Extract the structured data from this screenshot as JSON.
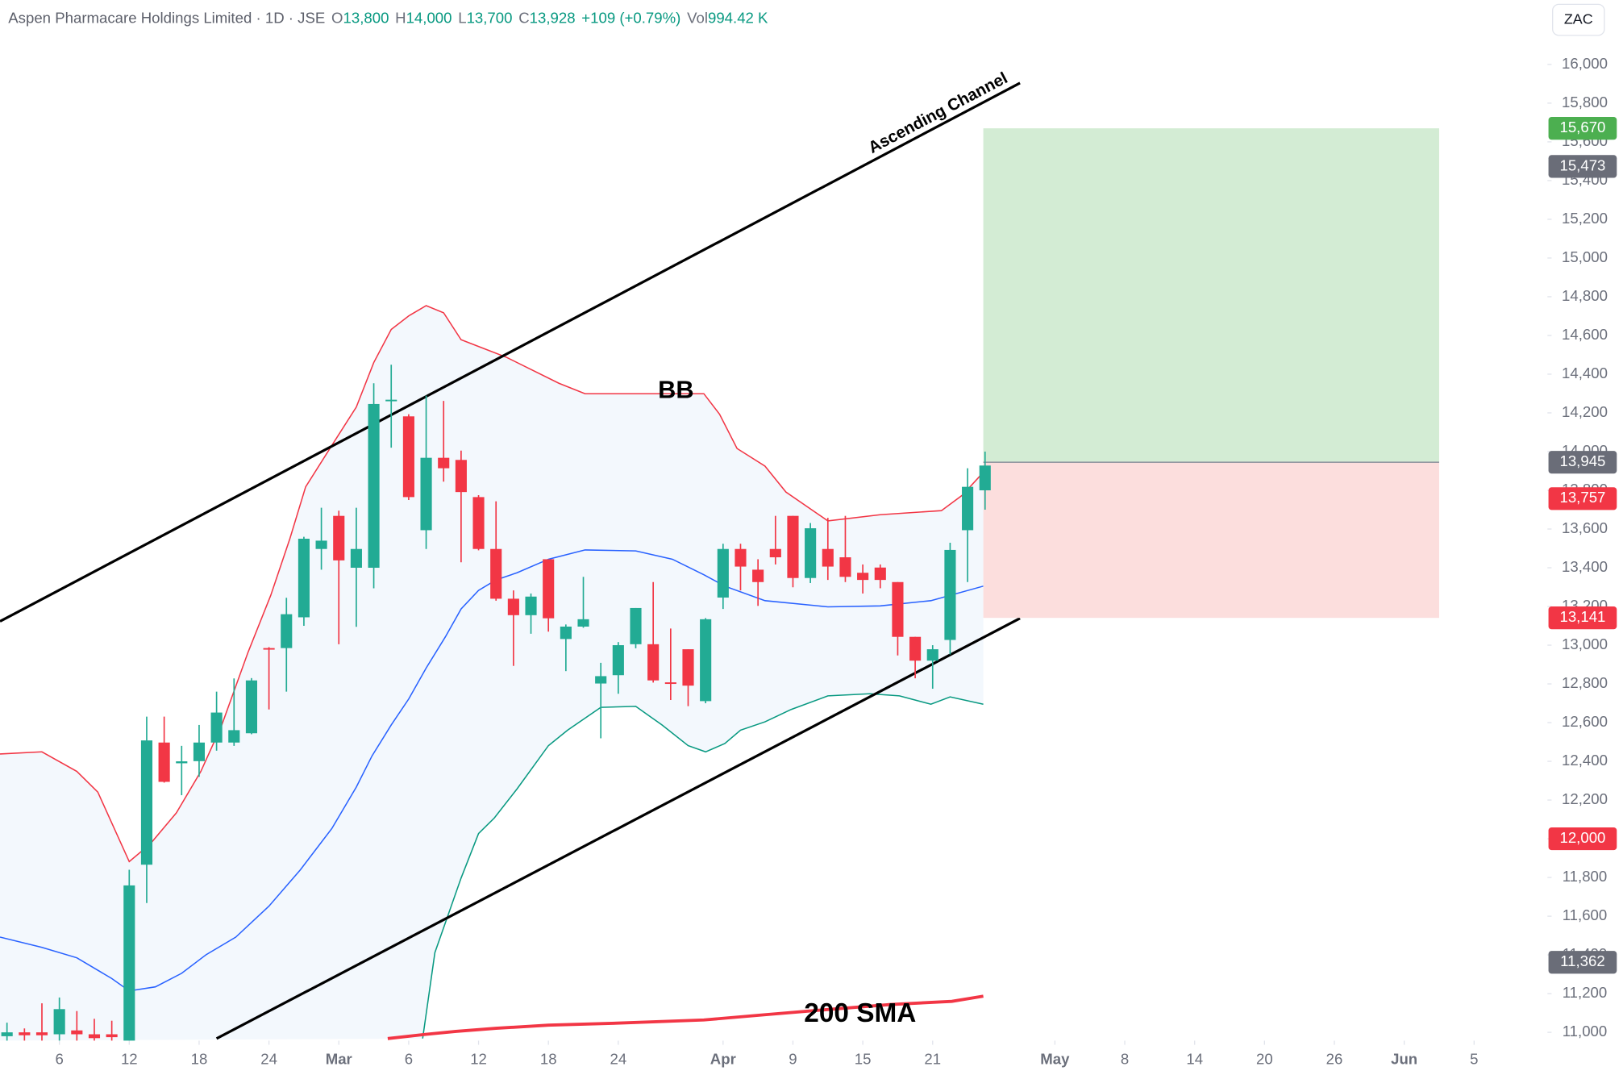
{
  "header": {
    "symbol": "Aspen Pharmacare Holdings Limited · 1D · JSE",
    "quote": [
      {
        "key": "O",
        "value": "13,800"
      },
      {
        "key": "H",
        "value": "14,000"
      },
      {
        "key": "L",
        "value": "13,700"
      },
      {
        "key": "C",
        "value": "13,928"
      }
    ],
    "change": "+109 (+0.79%)",
    "volume": {
      "key": "Vol",
      "value": "994.42 K"
    }
  },
  "currency": "ZAC",
  "chart_data": {
    "type": "candlestick",
    "x": [
      -7,
      -6,
      -5,
      -4,
      -3,
      -2,
      -1,
      0,
      1,
      2,
      3,
      4,
      5,
      6,
      7,
      8,
      9,
      10,
      11,
      12,
      13,
      14,
      15,
      16,
      17,
      18,
      19,
      20,
      21,
      22,
      23,
      24,
      25,
      26,
      27,
      28,
      29,
      30,
      31,
      32,
      33,
      34,
      35,
      36,
      37,
      38,
      39,
      40,
      41,
      42,
      43,
      44,
      45,
      46,
      47,
      48,
      49
    ],
    "open": [
      10980,
      11000,
      11000,
      10990,
      11010,
      10990,
      10990,
      10900,
      11866,
      12497,
      12390,
      12401,
      12497,
      12497,
      12545,
      12985,
      12985,
      13144,
      13497,
      13668,
      13400,
      13400,
      14260,
      14182,
      13594,
      13968,
      13957,
      13765,
      13497,
      13240,
      13155,
      13444,
      13032,
      13096,
      12802,
      12845,
      13005,
      13005,
      12808,
      12979,
      12711,
      13246,
      13497,
      13390,
      13497,
      13668,
      13347,
      13497,
      13454,
      13374,
      13401,
      13326,
      13043,
      12920,
      13027,
      13594,
      13800
    ],
    "high": [
      11050,
      11020,
      11150,
      11180,
      11110,
      11070,
      11060,
      11840,
      12631,
      12631,
      12480,
      12588,
      12760,
      12828,
      12830,
      12990,
      13245,
      13560,
      13710,
      13695,
      13710,
      14353,
      14449,
      14193,
      14289,
      14262,
      14005,
      13775,
      13743,
      13283,
      13267,
      13444,
      13107,
      13353,
      12909,
      13016,
      13192,
      13326,
      13086,
      12979,
      13140,
      13524,
      13524,
      13444,
      13668,
      13668,
      13631,
      13658,
      13668,
      13417,
      13417,
      13326,
      13043,
      13000,
      13529,
      13914,
      14000
    ],
    "low": [
      10950,
      10950,
      10950,
      10950,
      10950,
      10950,
      10950,
      10880,
      11668,
      12290,
      12225,
      12320,
      12455,
      12480,
      12540,
      12668,
      12760,
      13100,
      13390,
      13005,
      13095,
      13294,
      14020,
      13750,
      13497,
      13845,
      13428,
      13490,
      13230,
      12893,
      13059,
      13070,
      12866,
      13090,
      12519,
      12749,
      12984,
      12807,
      12717,
      12685,
      12700,
      13187,
      13283,
      13203,
      13417,
      13299,
      13321,
      13337,
      13326,
      13267,
      13294,
      12947,
      12829,
      12775,
      12952,
      13326,
      13700
    ],
    "close": [
      11000,
      10985,
      10985,
      11120,
      10990,
      10970,
      10975,
      11759,
      12508,
      12294,
      12400,
      12497,
      12652,
      12561,
      12818,
      12980,
      13160,
      13550,
      13540,
      13438,
      13497,
      14246,
      14268,
      13765,
      13968,
      13914,
      13791,
      13497,
      13240,
      13155,
      13251,
      13139,
      13096,
      13134,
      12840,
      13000,
      13192,
      12818,
      12802,
      12791,
      13134,
      13497,
      13406,
      13326,
      13454,
      13347,
      13604,
      13406,
      13353,
      13337,
      13337,
      13043,
      12920,
      12979,
      13492,
      13818,
      13928
    ],
    "up_color": "#22ab94",
    "down_color": "#f23645",
    "xlim": [
      -7.4,
      81.2
    ],
    "ylim": [
      10957,
      16332
    ],
    "xticks": [
      {
        "value": -4,
        "label": "6"
      },
      {
        "value": 0,
        "label": "12"
      },
      {
        "value": 4,
        "label": "18"
      },
      {
        "value": 8,
        "label": "24"
      },
      {
        "value": 12,
        "label": "Mar"
      },
      {
        "value": 16,
        "label": "6"
      },
      {
        "value": 20,
        "label": "12"
      },
      {
        "value": 24,
        "label": "18"
      },
      {
        "value": 28,
        "label": "24"
      },
      {
        "value": 34,
        "label": "Apr"
      },
      {
        "value": 38,
        "label": "9"
      },
      {
        "value": 42,
        "label": "15"
      },
      {
        "value": 46,
        "label": "21"
      },
      {
        "value": 53,
        "label": "May"
      },
      {
        "value": 57,
        "label": "8"
      },
      {
        "value": 61,
        "label": "14"
      },
      {
        "value": 65,
        "label": "20"
      },
      {
        "value": 69,
        "label": "26"
      },
      {
        "value": 73,
        "label": "Jun"
      },
      {
        "value": 77,
        "label": "5"
      }
    ],
    "yticks": [
      {
        "value": 11000,
        "label": "11,000"
      },
      {
        "value": 11200,
        "label": "11,200"
      },
      {
        "value": 11400,
        "label": "11,400"
      },
      {
        "value": 11600,
        "label": "11,600"
      },
      {
        "value": 11800,
        "label": "11,800"
      },
      {
        "value": 12000,
        "label": "12,000"
      },
      {
        "value": 12200,
        "label": "12,200"
      },
      {
        "value": 12400,
        "label": "12,400"
      },
      {
        "value": 12600,
        "label": "12,600"
      },
      {
        "value": 12800,
        "label": "12,800"
      },
      {
        "value": 13000,
        "label": "13,000"
      },
      {
        "value": 13200,
        "label": "13,200"
      },
      {
        "value": 13400,
        "label": "13,400"
      },
      {
        "value": 13600,
        "label": "13,600"
      },
      {
        "value": 13800,
        "label": "13,800"
      },
      {
        "value": 14000,
        "label": "14,000"
      },
      {
        "value": 14200,
        "label": "14,200"
      },
      {
        "value": 14400,
        "label": "14,400"
      },
      {
        "value": 14600,
        "label": "14,600"
      },
      {
        "value": 14800,
        "label": "14,800"
      },
      {
        "value": 15000,
        "label": "15,000"
      },
      {
        "value": 15200,
        "label": "15,200"
      },
      {
        "value": 15400,
        "label": "15,400"
      },
      {
        "value": 15600,
        "label": "15,600"
      },
      {
        "value": 15800,
        "label": "15,800"
      },
      {
        "value": 16000,
        "label": "16,000"
      }
    ],
    "bollinger": {
      "label": "BB",
      "fill": "#f3f8fd",
      "upper": {
        "color": "#f23645",
        "x": [
          -7.4,
          -5,
          -3,
          -1.8,
          0,
          1.2,
          2.7,
          4.1,
          5.3,
          6.8,
          8.1,
          9.2,
          10.1,
          11.6,
          13,
          14,
          15,
          16,
          17,
          18,
          19,
          20.4,
          21.6,
          24.6,
          26.1,
          32.9,
          33.8,
          34.8,
          36.4,
          37.6,
          40,
          43,
          46.5,
          47.7,
          48.9
        ],
        "values": [
          12438,
          12449,
          12348,
          12241,
          11882,
          11973,
          12134,
          12348,
          12588,
          12963,
          13257,
          13551,
          13818,
          14032,
          14230,
          14460,
          14631,
          14701,
          14754,
          14717,
          14578,
          14529,
          14487,
          14353,
          14299,
          14299,
          14193,
          14016,
          13925,
          13791,
          13642,
          13674,
          13695,
          13775,
          13893
        ]
      },
      "middle": {
        "color": "#2962ff",
        "x": [
          -7.4,
          -5,
          -3,
          -1,
          0,
          1.5,
          3,
          4.4,
          6.1,
          8,
          9.8,
          11.6,
          13,
          13.9,
          15,
          16,
          17,
          18.1,
          19,
          20,
          21,
          22.2,
          24,
          26.1,
          29,
          31.1,
          32.9,
          34.1,
          36.4,
          40,
          43,
          45.9,
          48.9
        ],
        "values": [
          11492,
          11439,
          11385,
          11278,
          11214,
          11235,
          11305,
          11401,
          11492,
          11652,
          11840,
          12053,
          12267,
          12428,
          12588,
          12722,
          12882,
          13043,
          13187,
          13283,
          13337,
          13374,
          13444,
          13492,
          13487,
          13444,
          13364,
          13305,
          13230,
          13198,
          13203,
          13230,
          13305
        ]
      },
      "lower": {
        "color": "#089981",
        "x": [
          16.8,
          17.5,
          19,
          20,
          20.9,
          22.2,
          24,
          25.1,
          27,
          29,
          30.5,
          32,
          33,
          34.1,
          35,
          36.4,
          37.9,
          40,
          42.4,
          44.1,
          45.9,
          47,
          48.9
        ],
        "values": [
          10968,
          11412,
          11797,
          12027,
          12107,
          12257,
          12481,
          12561,
          12679,
          12684,
          12588,
          12481,
          12449,
          12492,
          12561,
          12604,
          12668,
          12738,
          12749,
          12738,
          12695,
          12733,
          12695
        ]
      }
    },
    "sma": {
      "label": "200 SMA",
      "color": "#f23645",
      "x": [
        14.8,
        16.9,
        18.7,
        21,
        24,
        28.1,
        32.9,
        36.4,
        40,
        43.6,
        47.1,
        48.9
      ],
      "values": [
        10968,
        10989,
        11005,
        11021,
        11037,
        11048,
        11064,
        11091,
        11118,
        11144,
        11160,
        11187
      ]
    },
    "channel": {
      "label": "Ascending Channel",
      "color": "#000000",
      "upper": {
        "x": [
          -7.4,
          51
        ],
        "values": [
          13123,
          15904
        ]
      },
      "lower": {
        "x": [
          5,
          51
        ],
        "values": [
          10968,
          13139
        ]
      }
    },
    "position": {
      "x": [
        48.9,
        75
      ],
      "target": 15670,
      "entry": 13945,
      "stop": 13141,
      "profit_color": "#d3ecd4",
      "loss_color": "#fcdedd"
    },
    "price_tags": [
      {
        "value": 15670,
        "label": "15,670",
        "color": "#4caf50"
      },
      {
        "value": 15473,
        "label": "15,473",
        "color": "#6a6d78"
      },
      {
        "value": 13945,
        "label": "13,945",
        "color": "#6a6d78"
      },
      {
        "value": 13757,
        "label": "13,757",
        "color": "#f23645"
      },
      {
        "value": 13141,
        "label": "13,141",
        "color": "#f23645"
      },
      {
        "value": 12000,
        "label": "12,000",
        "color": "#f23645"
      },
      {
        "value": 11362,
        "label": "11,362",
        "color": "#6a6d78"
      }
    ]
  }
}
